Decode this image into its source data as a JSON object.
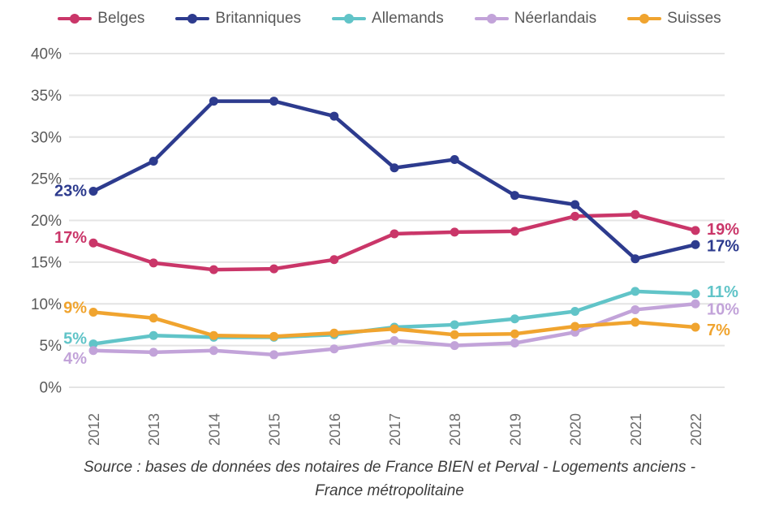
{
  "chart_data": {
    "type": "line",
    "title": "",
    "xlabel": "",
    "ylabel": "",
    "x": [
      "2012",
      "2013",
      "2014",
      "2015",
      "2016",
      "2017",
      "2018",
      "2019",
      "2020",
      "2021",
      "2022"
    ],
    "y_ticks": [
      "0%",
      "5%",
      "10%",
      "15%",
      "20%",
      "25%",
      "30%",
      "35%",
      "40%"
    ],
    "ylim": [
      0,
      40
    ],
    "grid": true,
    "legend_position": "top",
    "series": [
      {
        "name": "Belges",
        "color": "#CA3669",
        "values": [
          17.3,
          14.9,
          14.1,
          14.2,
          15.3,
          18.4,
          18.6,
          18.7,
          20.5,
          20.7,
          18.8
        ],
        "start_label": "17%",
        "end_label": "19%"
      },
      {
        "name": "Britanniques",
        "color": "#2D3B8E",
        "values": [
          23.5,
          27.1,
          34.3,
          34.3,
          32.5,
          26.3,
          27.3,
          23.0,
          21.9,
          15.4,
          17.1
        ],
        "start_label": "23%",
        "end_label": "17%"
      },
      {
        "name": "Allemands",
        "color": "#61C4C8",
        "values": [
          5.2,
          6.2,
          6.0,
          6.0,
          6.3,
          7.2,
          7.5,
          8.2,
          9.1,
          11.5,
          11.2
        ],
        "start_label": "5%",
        "end_label": "11%"
      },
      {
        "name": "Néerlandais",
        "color": "#C2A3D9",
        "values": [
          4.4,
          4.2,
          4.4,
          3.9,
          4.6,
          5.6,
          5.0,
          5.3,
          6.6,
          9.3,
          10.0
        ],
        "start_label": "4%",
        "end_label": "10%"
      },
      {
        "name": "Suisses",
        "color": "#F0A42F",
        "values": [
          9.0,
          8.3,
          6.2,
          6.1,
          6.5,
          7.0,
          6.3,
          6.4,
          7.3,
          7.8,
          7.2
        ],
        "start_label": "9%",
        "end_label": "7%"
      }
    ]
  },
  "source": {
    "line1": "Source : bases de données des notaires de France BIEN et Perval - Logements anciens -",
    "line2": "France métropolitaine"
  },
  "colors": {
    "grid": "#E4E4E4",
    "axis_text": "#595959",
    "year_text": "#6B6B6B",
    "source_text": "#3C3C3C",
    "background": "#FFFFFF"
  }
}
